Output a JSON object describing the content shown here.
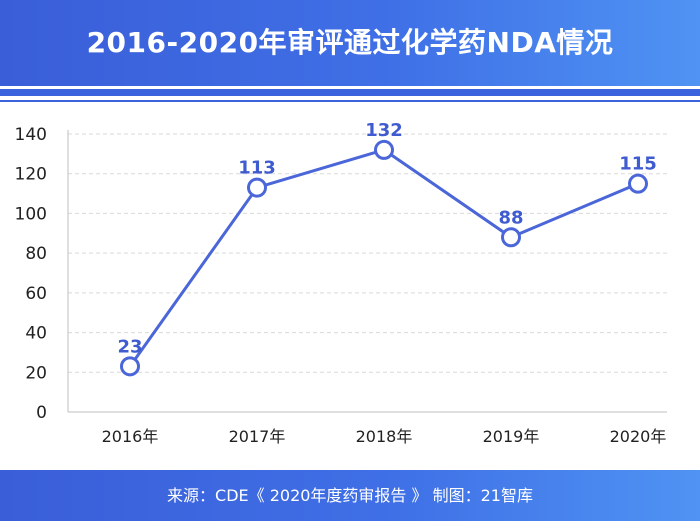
{
  "header": {
    "title": "2016-2020年审评通过化学药NDA情况"
  },
  "footer": {
    "source": "来源：CDE《 2020年度药审报告 》   制图：21智库"
  },
  "colors": {
    "accent": "#4a66d8",
    "label": "#3f5bd0",
    "grid": "#d9d9d9",
    "axis": "#bfbfbf",
    "tick": "#222222"
  },
  "chart_data": {
    "type": "line",
    "title": "2016-2020年审评通过化学药NDA情况",
    "xlabel": "",
    "ylabel": "",
    "categories": [
      "2016年",
      "2017年",
      "2018年",
      "2019年",
      "2020年"
    ],
    "series": [
      {
        "name": "化学药NDA",
        "values": [
          23,
          113,
          132,
          88,
          115
        ]
      }
    ],
    "data_labels": [
      "23",
      "113",
      "132",
      "88",
      "115"
    ],
    "ylim": [
      0,
      140
    ],
    "yticks": [
      0,
      20,
      40,
      60,
      80,
      100,
      120,
      140
    ],
    "ytick_labels": [
      "0",
      "20",
      "40",
      "60",
      "80",
      "100",
      "120",
      "140"
    ],
    "grid": true,
    "legend": "none"
  }
}
